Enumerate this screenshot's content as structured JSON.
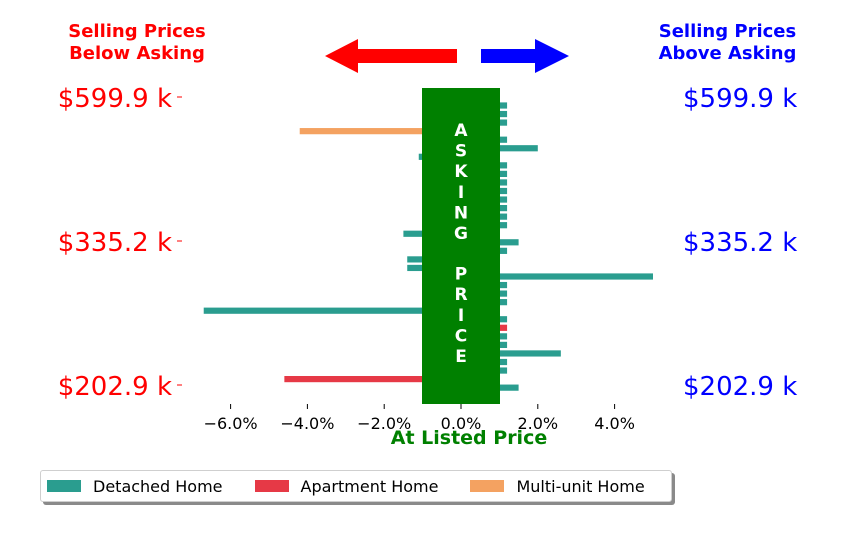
{
  "header": {
    "left_label": "Selling Prices\nBelow Asking",
    "right_label": "Selling Prices\nAbove Asking",
    "left_color": "#ff0000",
    "right_color": "#0000ff"
  },
  "price_labels": [
    "$599.9 k",
    "$335.2 k",
    "$202.9 k"
  ],
  "center_band": {
    "text_top": "ASKING",
    "text_bottom": "PRICE",
    "color": "#008000",
    "caption": "At Listed Price"
  },
  "legend": [
    {
      "label": "Detached Home",
      "color": "#2a9d8f"
    },
    {
      "label": "Apartment Home",
      "color": "#e63946"
    },
    {
      "label": "Multi-unit Home",
      "color": "#f4a261"
    }
  ],
  "chart_data": {
    "type": "bar",
    "orientation": "horizontal",
    "x": {
      "ticks": [
        -6,
        -4,
        -2,
        0,
        2,
        4
      ],
      "tick_labels": [
        "−6.0%",
        "−4.0%",
        "−2.0%",
        "0.0%",
        "2.0%",
        "4.0%"
      ],
      "lim": [
        -7.3,
        8.8
      ]
    },
    "y_ticks": [
      "$599.9 k",
      "$335.2 k",
      "$202.9 k"
    ],
    "bars": [
      {
        "type": "Detached Home",
        "value": 1.2
      },
      {
        "type": "Detached Home",
        "value": 1.2
      },
      {
        "type": "Detached Home",
        "value": 1.2
      },
      {
        "type": "Multi-unit Home",
        "value": -4.2
      },
      {
        "type": "Detached Home",
        "value": 1.2
      },
      {
        "type": "Detached Home",
        "value": 2.0
      },
      {
        "type": "Detached Home",
        "value": -1.1
      },
      {
        "type": "Detached Home",
        "value": 1.2
      },
      {
        "type": "Detached Home",
        "value": 1.2
      },
      {
        "type": "Detached Home",
        "value": 1.2
      },
      {
        "type": "Detached Home",
        "value": 1.2
      },
      {
        "type": "Detached Home",
        "value": 1.2
      },
      {
        "type": "Detached Home",
        "value": 1.2
      },
      {
        "type": "Detached Home",
        "value": 1.2
      },
      {
        "type": "Detached Home",
        "value": 1.2
      },
      {
        "type": "Detached Home",
        "value": -1.5
      },
      {
        "type": "Detached Home",
        "value": 1.5
      },
      {
        "type": "Detached Home",
        "value": 1.2
      },
      {
        "type": "Detached Home",
        "value": -1.4
      },
      {
        "type": "Detached Home",
        "value": -1.4
      },
      {
        "type": "Detached Home",
        "value": 5.0
      },
      {
        "type": "Detached Home",
        "value": 1.2
      },
      {
        "type": "Detached Home",
        "value": 1.2
      },
      {
        "type": "Detached Home",
        "value": 1.2
      },
      {
        "type": "Detached Home",
        "value": -6.7
      },
      {
        "type": "Detached Home",
        "value": 1.2
      },
      {
        "type": "Apartment Home",
        "value": 1.2
      },
      {
        "type": "Detached Home",
        "value": 1.2
      },
      {
        "type": "Detached Home",
        "value": 1.2
      },
      {
        "type": "Detached Home",
        "value": 2.6
      },
      {
        "type": "Detached Home",
        "value": 1.2
      },
      {
        "type": "Detached Home",
        "value": 1.2
      },
      {
        "type": "Apartment Home",
        "value": -4.6
      },
      {
        "type": "Detached Home",
        "value": 1.5
      }
    ]
  }
}
